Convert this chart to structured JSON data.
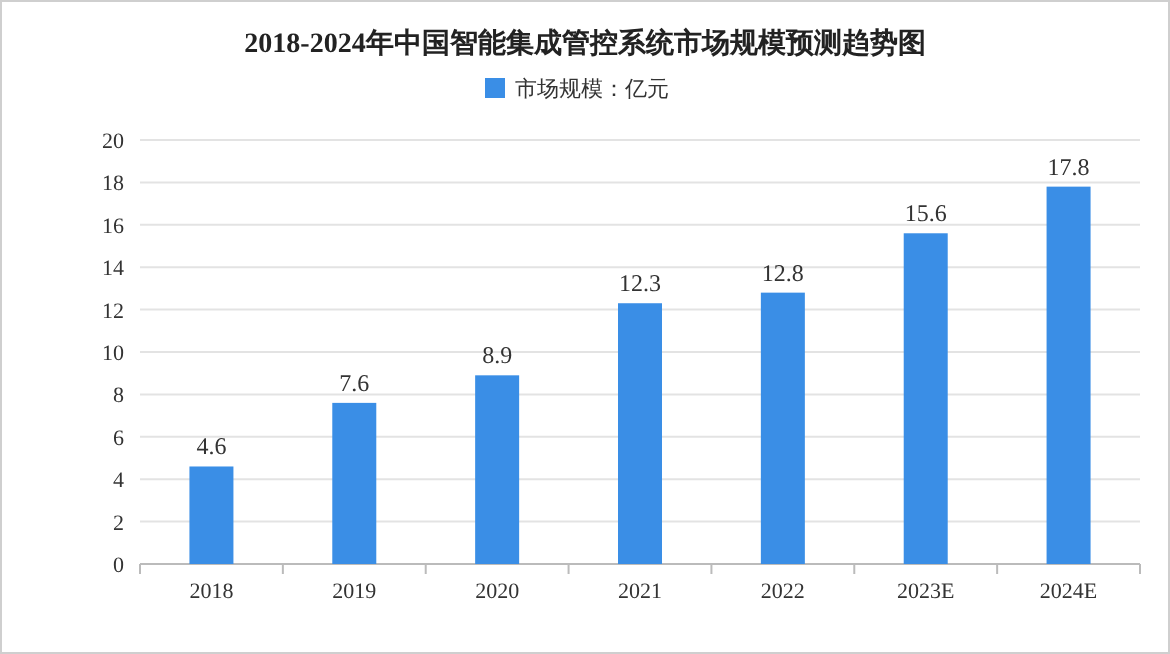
{
  "chart_data": {
    "type": "bar",
    "title": "2018-2024年中国智能集成管控系统市场规模预测趋势图",
    "categories": [
      "2018",
      "2019",
      "2020",
      "2021",
      "2022",
      "2023E",
      "2024E"
    ],
    "series": [
      {
        "name": "市场规模：亿元",
        "color": "#3a8ee6",
        "values": [
          4.6,
          7.6,
          8.9,
          12.3,
          12.8,
          15.6,
          17.8
        ]
      }
    ],
    "ylim": [
      0,
      20
    ],
    "yticks": [
      0,
      2,
      4,
      6,
      8,
      10,
      12,
      14,
      16,
      18,
      20
    ],
    "grid": "y",
    "legend": "top",
    "data_labels": true
  }
}
